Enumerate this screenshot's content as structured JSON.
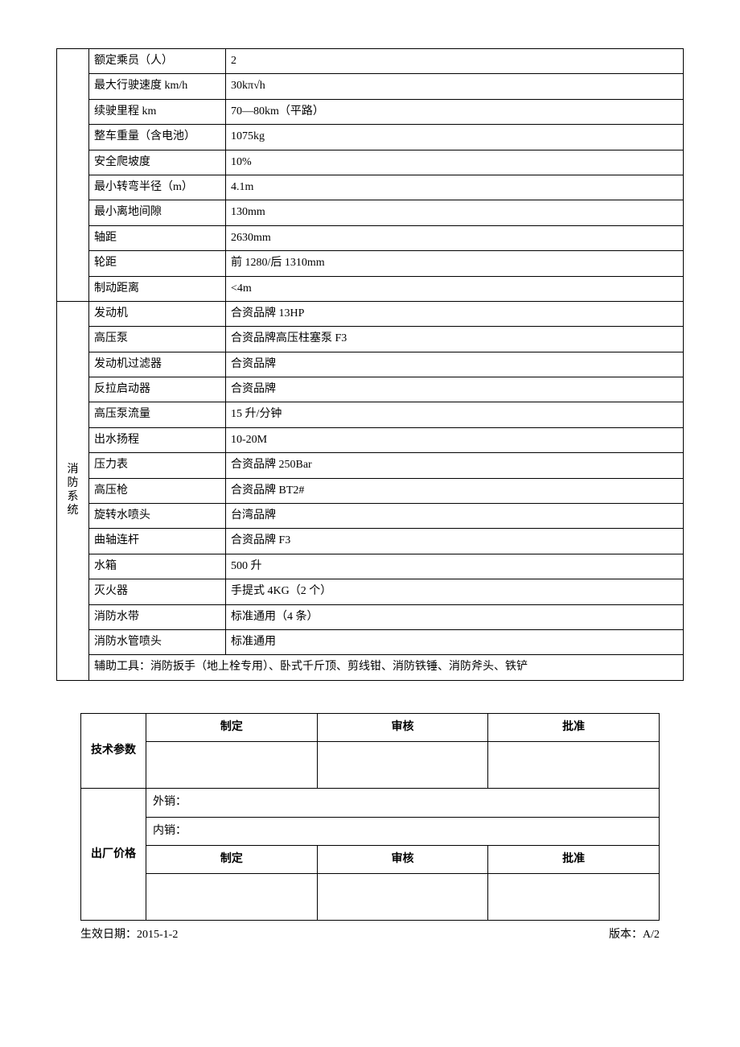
{
  "mainTable": {
    "section1": {
      "rows": [
        {
          "name": "额定乘员（人）",
          "value": "2"
        },
        {
          "name": "最大行驶速度 km/h",
          "value": "30kπ√h"
        },
        {
          "name": "续驶里程 km",
          "value": "70—80km（平路）"
        },
        {
          "name": "整车重量（含电池）",
          "value": "1075kg"
        },
        {
          "name": "安全爬坡度",
          "value": "10%"
        },
        {
          "name": "最小转弯半径（m）",
          "value": "4.1m"
        },
        {
          "name": "最小离地间隙",
          "value": "130mm"
        },
        {
          "name": "轴距",
          "value": "2630mm"
        },
        {
          "name": "轮距",
          "value": "前 1280/后 1310mm"
        },
        {
          "name": "制动距离",
          "value": "<4m"
        }
      ]
    },
    "section2": {
      "label": "消防系统",
      "rows": [
        {
          "name": "发动机",
          "value": "合资品牌 13HP"
        },
        {
          "name": "高压泵",
          "value": "合资品牌高压柱塞泵 F3"
        },
        {
          "name": "发动机过滤器",
          "value": "合资品牌"
        },
        {
          "name": "反拉启动器",
          "value": "合资品牌"
        },
        {
          "name": "高压泵流量",
          "value": "15 升/分钟"
        },
        {
          "name": "出水扬程",
          "value": "10-20M"
        },
        {
          "name": "压力表",
          "value": "合资品牌 250Bar"
        },
        {
          "name": "高压枪",
          "value": "合资品牌 BT2#"
        },
        {
          "name": "旋转水喷头",
          "value": "台湾品牌"
        },
        {
          "name": "曲轴连杆",
          "value": "合资品牌 F3"
        },
        {
          "name": "水箱",
          "value": "500 升"
        },
        {
          "name": "灭火器",
          "value": "手提式 4KG（2 个）"
        },
        {
          "name": "消防水带",
          "value": "标准通用（4 条）"
        },
        {
          "name": "消防水管喷头",
          "value": "标准通用"
        }
      ],
      "auxTools": "辅助工具：消防扳手（地上栓专用）、卧式千斤顶、剪线钳、消防铁锤、消防斧头、铁铲"
    }
  },
  "sigTable": {
    "row1Label": "技术参数",
    "row2Label": "出厂价格",
    "headers": {
      "make": "制定",
      "review": "审核",
      "approve": "批准"
    },
    "export": "外销：",
    "domestic": "内销："
  },
  "footer": {
    "effectiveDate": "生效日期：2015-1-2",
    "version": "版本：A/2"
  }
}
